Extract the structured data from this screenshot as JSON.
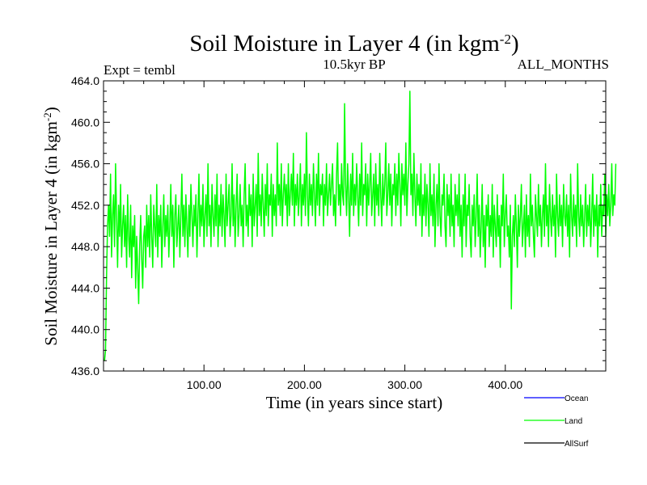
{
  "chart_data": {
    "type": "line",
    "title_main": "Soil Moisture in Layer 4 (in kgm",
    "title_sup": "-2",
    "title_close": ")",
    "subtitle_left": "Expt = tembl",
    "subtitle_center": "10.5kyr BP",
    "subtitle_right": "ALL_MONTHS",
    "xlabel": "Time (in years since start)",
    "ylabel_main": "Soil Moisture in Layer 4 (in kgm",
    "ylabel_sup": "-2",
    "ylabel_close": ")",
    "xlim": [
      0,
      500
    ],
    "ylim": [
      436,
      464
    ],
    "x_ticks": [
      100,
      200,
      300,
      400
    ],
    "x_tick_labels": [
      "100.00",
      "200.00",
      "300.00",
      "400.00"
    ],
    "y_ticks": [
      436,
      440,
      444,
      448,
      452,
      456,
      460,
      464
    ],
    "y_tick_labels": [
      "436.0",
      "440.0",
      "444.0",
      "448.0",
      "452.0",
      "456.0",
      "460.0",
      "464.0"
    ],
    "legend": [
      {
        "name": "Ocean",
        "color": "#0000ff"
      },
      {
        "name": "Land",
        "color": "#00ff00"
      },
      {
        "name": "AllSurf",
        "color": "#000000"
      }
    ],
    "series": [
      {
        "name": "Land",
        "color": "#00ff00",
        "x_start": 1,
        "x_step": 1,
        "values": [
          437,
          438,
          445,
          450,
          452,
          449,
          455,
          447,
          451,
          453,
          448,
          456,
          451,
          446,
          452,
          449,
          454,
          447,
          450,
          452,
          448,
          451,
          446,
          453,
          449,
          447,
          452,
          445,
          450,
          448,
          451,
          444,
          449,
          446,
          442.5,
          448,
          451,
          447,
          444,
          449,
          450,
          446,
          452,
          448,
          451,
          447,
          453,
          449,
          446,
          452,
          450,
          448,
          454,
          447,
          451,
          449,
          452,
          446,
          450,
          453,
          448,
          451,
          449,
          452,
          447,
          450,
          454,
          449,
          452,
          446,
          451,
          453,
          448,
          450,
          452,
          447,
          451,
          455,
          449,
          452,
          448,
          453,
          450,
          447,
          452,
          449,
          454,
          451,
          448,
          452,
          450,
          453,
          447,
          451,
          455,
          449,
          452,
          450,
          454,
          448,
          451,
          453,
          449,
          456,
          450,
          452,
          448,
          454,
          451,
          449,
          453,
          450,
          455,
          448,
          452,
          450,
          454,
          449,
          453,
          451,
          448,
          455,
          450,
          452,
          454,
          449,
          451,
          456,
          450,
          453,
          448,
          452,
          455,
          449,
          451,
          454,
          450,
          452,
          448,
          453,
          456,
          450,
          452,
          449,
          454,
          451,
          453,
          448,
          455,
          450,
          452,
          454,
          449,
          457,
          451,
          453,
          450,
          455,
          452,
          449,
          454,
          451,
          456,
          450,
          453,
          452,
          455,
          449,
          454,
          451,
          453,
          450,
          458,
          452,
          454,
          451,
          456,
          450,
          453,
          455,
          452,
          454,
          450,
          456,
          451,
          453,
          455,
          452,
          457,
          450,
          454,
          452,
          455,
          451,
          453,
          456,
          450,
          454,
          452,
          455,
          451,
          459,
          453,
          450,
          455,
          452,
          454,
          451,
          456,
          453,
          450,
          455,
          452,
          457,
          451,
          454,
          453,
          455,
          450,
          454,
          452,
          456,
          451,
          453,
          455,
          452,
          454,
          456,
          451,
          453,
          450,
          455,
          458,
          452,
          454,
          451,
          456,
          453,
          452,
          461.8,
          454,
          451,
          456,
          453,
          449,
          455,
          452,
          457,
          451,
          454,
          452,
          456,
          453,
          450,
          455,
          452,
          458,
          451,
          454,
          453,
          456,
          450,
          455,
          452,
          454,
          457,
          451,
          453,
          455,
          450,
          456,
          452,
          454,
          451,
          457,
          453,
          450,
          455,
          452,
          454,
          458,
          451,
          453,
          456,
          452,
          455,
          450,
          454,
          453,
          456,
          451,
          455,
          452,
          457,
          454,
          450,
          456,
          453,
          455,
          452,
          458,
          451,
          454,
          456,
          463,
          453,
          455,
          451,
          457,
          453,
          450,
          455,
          452,
          454,
          451,
          456,
          449,
          453,
          451,
          455,
          450,
          454,
          452,
          449,
          456,
          451,
          453,
          450,
          455,
          448,
          452,
          454,
          450,
          456,
          451,
          449,
          453,
          452,
          455,
          450,
          448,
          454,
          451,
          453,
          449,
          455,
          450,
          452,
          448,
          454,
          451,
          453,
          450,
          455,
          449,
          452,
          447,
          453,
          450,
          455,
          448,
          452,
          451,
          454,
          449,
          447,
          452,
          450,
          453,
          448,
          451,
          455,
          449,
          452,
          447,
          450,
          454,
          448,
          451,
          446,
          452,
          450,
          453,
          448,
          451,
          449,
          454,
          447,
          452,
          450,
          448,
          453,
          449,
          451,
          446,
          452,
          450,
          455,
          448,
          451,
          453,
          449,
          450,
          447,
          452,
          442,
          449,
          451,
          448,
          453,
          450,
          446,
          452,
          449,
          451,
          454,
          448,
          450,
          452,
          447,
          453,
          449,
          451,
          448,
          455,
          450,
          452,
          449,
          447,
          453,
          451,
          449,
          454,
          450,
          452,
          448,
          451,
          453,
          449,
          456,
          450,
          452,
          448,
          454,
          451,
          449,
          453,
          450,
          452,
          447,
          455,
          451,
          449,
          453,
          450,
          452,
          448,
          454,
          451,
          450,
          453,
          449,
          452,
          447,
          455,
          451,
          449,
          453,
          450,
          452,
          448,
          456,
          451,
          449,
          453,
          450,
          452,
          448,
          451,
          454,
          449,
          452,
          450,
          453,
          448,
          451,
          455,
          449,
          452,
          450,
          453,
          447,
          452,
          450,
          454,
          449,
          452,
          451,
          455,
          449,
          453,
          451,
          454,
          450,
          452,
          456,
          451,
          453,
          452,
          456
        ]
      }
    ]
  }
}
